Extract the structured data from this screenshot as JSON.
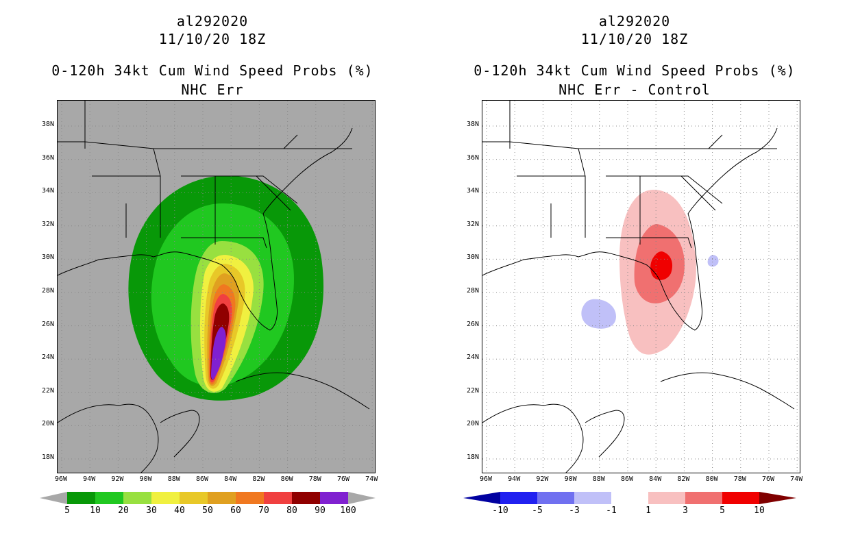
{
  "left": {
    "storm_id": "al292020",
    "datetime": "11/10/20 18Z",
    "product": "0-120h 34kt Cum Wind Speed Probs (%)",
    "subtitle": "NHC Err",
    "background_color": "#a8a8a8",
    "colorbar_labels": [
      "5",
      "10",
      "20",
      "30",
      "40",
      "50",
      "60",
      "70",
      "80",
      "90",
      "100"
    ],
    "colorbar_colors": [
      "#089808",
      "#20c820",
      "#98e040",
      "#f0f040",
      "#e8c828",
      "#e0a020",
      "#f07820",
      "#f04040",
      "#900000",
      "#8020d0"
    ]
  },
  "right": {
    "storm_id": "al292020",
    "datetime": "11/10/20 18Z",
    "product": "0-120h 34kt Cum Wind Speed Probs (%)",
    "subtitle": "NHC Err - Control",
    "background_color": "#ffffff",
    "colorbar_labels": [
      "-10",
      "-5",
      "-3",
      "-1",
      "1",
      "3",
      "5",
      "10"
    ],
    "colorbar_colors": [
      "#0000a0",
      "#2020f0",
      "#7070f0",
      "#c0c0f8",
      "#ffffff",
      "#f8c0c0",
      "#f07070",
      "#f00000",
      "#800000"
    ]
  },
  "axes": {
    "lat_labels": [
      "38N",
      "36N",
      "34N",
      "32N",
      "30N",
      "28N",
      "26N",
      "24N",
      "22N",
      "20N",
      "18N"
    ],
    "lon_labels": [
      "96W",
      "94W",
      "92W",
      "90W",
      "88W",
      "86W",
      "84W",
      "82W",
      "80W",
      "78W",
      "76W",
      "74W"
    ]
  }
}
